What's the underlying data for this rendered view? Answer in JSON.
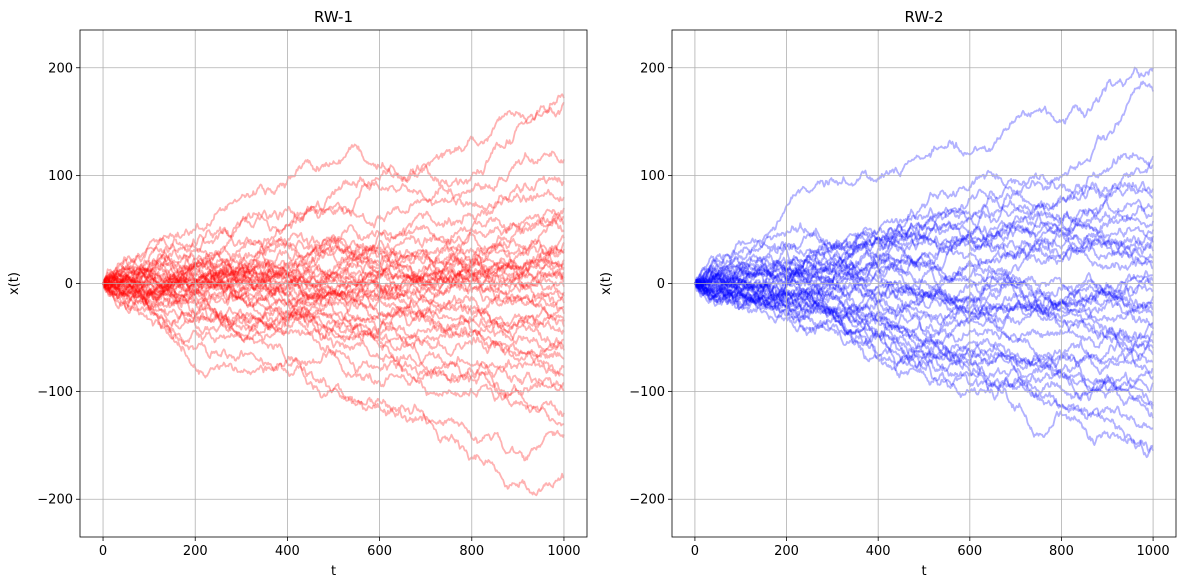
{
  "chart_data": [
    {
      "type": "line",
      "title": "RW-1",
      "xlabel": "t",
      "ylabel": "x(t)",
      "xlim": [
        -50,
        1050
      ],
      "ylim": [
        -235,
        235
      ],
      "xticks": [
        0,
        200,
        400,
        600,
        800,
        1000
      ],
      "yticks": [
        -200,
        -100,
        0,
        100,
        200
      ],
      "xtick_labels": [
        "0",
        "200",
        "400",
        "600",
        "800",
        "1000"
      ],
      "ytick_labels": [
        "−200",
        "−100",
        "0",
        "100",
        "200"
      ],
      "grid": true,
      "color": "#ff0000",
      "alpha": 0.3,
      "n_steps": 1000,
      "endpoints": [
        172,
        168,
        115,
        95,
        80,
        70,
        62,
        55,
        48,
        42,
        38,
        32,
        28,
        22,
        18,
        15,
        10,
        5,
        2,
        -3,
        -8,
        -12,
        -18,
        -22,
        -28,
        -35,
        -40,
        -45,
        -52,
        -58,
        -62,
        -70,
        -78,
        -85,
        -92,
        -100,
        -120,
        -130,
        -140,
        -180
      ]
    },
    {
      "type": "line",
      "title": "RW-2",
      "xlabel": "t",
      "ylabel": "x(t)",
      "xlim": [
        -50,
        1050
      ],
      "ylim": [
        -235,
        235
      ],
      "xticks": [
        0,
        200,
        400,
        600,
        800,
        1000
      ],
      "yticks": [
        -200,
        -100,
        0,
        100,
        200
      ],
      "xtick_labels": [
        "0",
        "200",
        "400",
        "600",
        "800",
        "1000"
      ],
      "ytick_labels": [
        "−200",
        "−100",
        "0",
        "100",
        "200"
      ],
      "grid": true,
      "color": "#0000ff",
      "alpha": 0.3,
      "n_steps": 1000,
      "endpoints": [
        200,
        178,
        118,
        110,
        88,
        80,
        72,
        65,
        58,
        50,
        44,
        38,
        30,
        25,
        20,
        14,
        8,
        3,
        -2,
        -6,
        -12,
        -18,
        -24,
        -30,
        -36,
        -42,
        -48,
        -55,
        -60,
        -66,
        -72,
        -80,
        -86,
        -92,
        -110,
        -125,
        -135,
        -150,
        -155,
        -112
      ]
    }
  ]
}
